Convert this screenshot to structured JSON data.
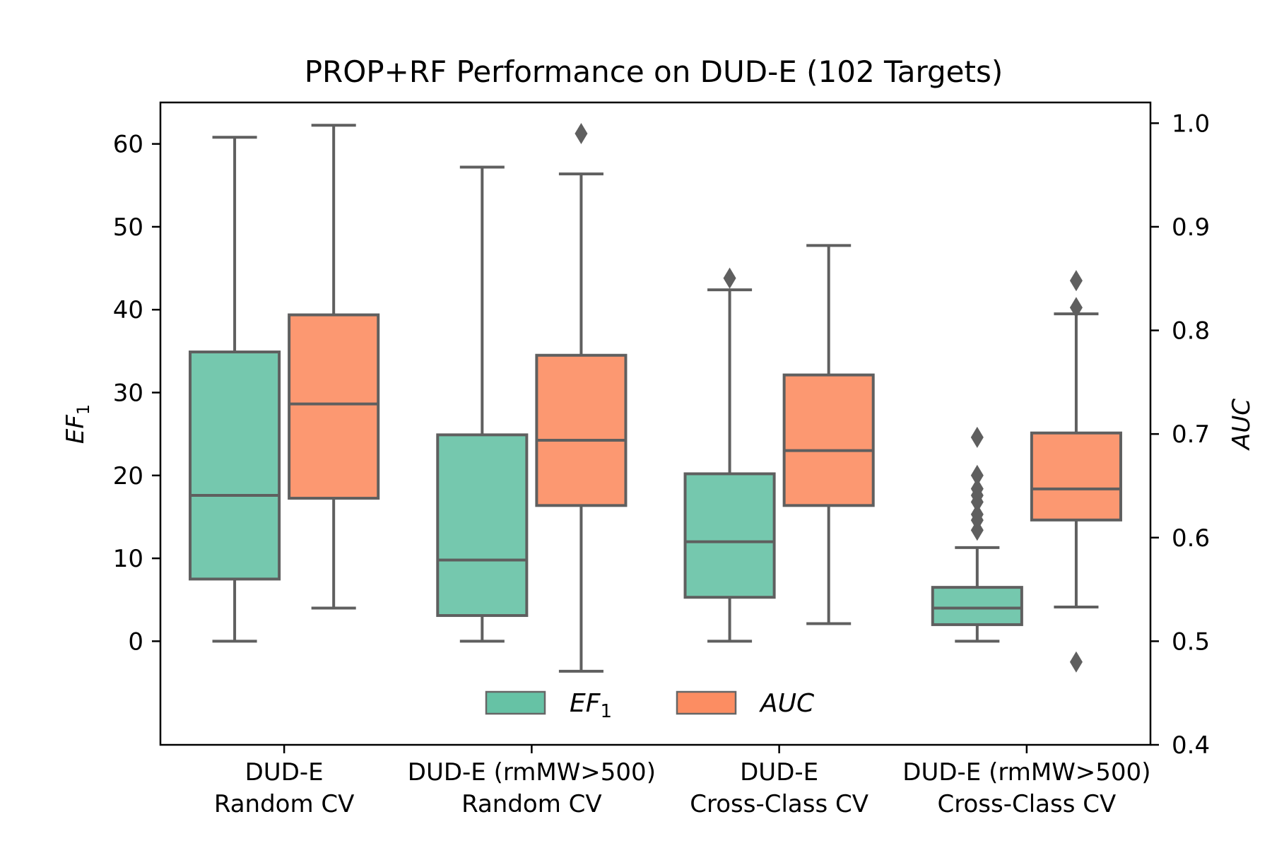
{
  "chart_data": {
    "type": "box",
    "title": "PROP+RF Performance on DUD-E (102 Targets)",
    "groups": [
      {
        "label_line1": "DUD-E",
        "label_line2": "Random CV"
      },
      {
        "label_line1": "DUD-E (rmMW>500)",
        "label_line2": "Random CV"
      },
      {
        "label_line1": "DUD-E",
        "label_line2": "Cross-Class CV"
      },
      {
        "label_line1": "DUD-E (rmMW>500)",
        "label_line2": "Cross-Class CV"
      }
    ],
    "left_axis": {
      "label": "EF",
      "label_sub": "1",
      "ylim": [
        -12.5,
        65
      ],
      "ticks": [
        0,
        10,
        20,
        30,
        40,
        50,
        60
      ],
      "tick_labels": [
        "0",
        "10",
        "20",
        "30",
        "40",
        "50",
        "60"
      ]
    },
    "right_axis": {
      "label": "AUC",
      "ylim": [
        0.4,
        1.02
      ],
      "ticks": [
        0.4,
        0.5,
        0.6,
        0.7,
        0.8,
        0.9,
        1.0
      ],
      "tick_labels": [
        "0.4",
        "0.5",
        "0.6",
        "0.7",
        "0.8",
        "0.9",
        "1.0"
      ]
    },
    "series": [
      {
        "name": "EF",
        "name_sub": "1",
        "color": "#66c2a5",
        "axis": "left",
        "boxes": [
          {
            "whislo": 0,
            "q1": 7.5,
            "med": 17.6,
            "q3": 34.9,
            "whishi": 60.8,
            "fliers": []
          },
          {
            "whislo": 0,
            "q1": 3.1,
            "med": 9.8,
            "q3": 24.9,
            "whishi": 57.2,
            "fliers": []
          },
          {
            "whislo": 0,
            "q1": 5.3,
            "med": 12.0,
            "q3": 20.2,
            "whishi": 42.4,
            "fliers": [
              43.8
            ]
          },
          {
            "whislo": 0,
            "q1": 2.0,
            "med": 4.0,
            "q3": 6.5,
            "whishi": 11.3,
            "fliers": [
              13.4,
              14.6,
              15.3,
              16.8,
              17.6,
              18.4,
              20.0,
              24.6
            ]
          }
        ]
      },
      {
        "name": "AUC",
        "color": "#fc8d62",
        "axis": "right",
        "boxes": [
          {
            "whislo": 0.532,
            "q1": 0.638,
            "med": 0.729,
            "q3": 0.815,
            "whishi": 0.998,
            "fliers": []
          },
          {
            "whislo": 0.471,
            "q1": 0.631,
            "med": 0.694,
            "q3": 0.776,
            "whishi": 0.951,
            "fliers": [
              0.99
            ]
          },
          {
            "whislo": 0.517,
            "q1": 0.631,
            "med": 0.684,
            "q3": 0.757,
            "whishi": 0.882,
            "fliers": []
          },
          {
            "whislo": 0.533,
            "q1": 0.617,
            "med": 0.647,
            "q3": 0.701,
            "whishi": 0.816,
            "fliers": [
              0.48,
              0.822,
              0.848
            ]
          }
        ]
      }
    ],
    "legend": {
      "placement": "lower center"
    }
  }
}
